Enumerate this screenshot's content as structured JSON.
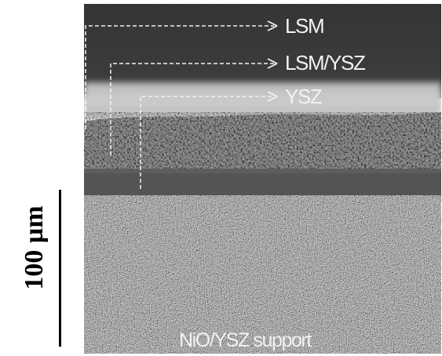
{
  "image": {
    "description_colors": {
      "background": "#ffffff",
      "sem_top": "#3a3a3a",
      "ysz_band": "#bdbdbd",
      "porous_layer": "#6a6a6a",
      "interlayer": "#555555",
      "support": "#8a8a8a",
      "annotation": "#f2f2f2"
    }
  },
  "labels": {
    "lsm": "LSM",
    "lsm_ysz": "LSM/YSZ",
    "ysz": "YSZ",
    "support": "NiO/YSZ support"
  },
  "scale_bar": {
    "label": "100 µm"
  }
}
